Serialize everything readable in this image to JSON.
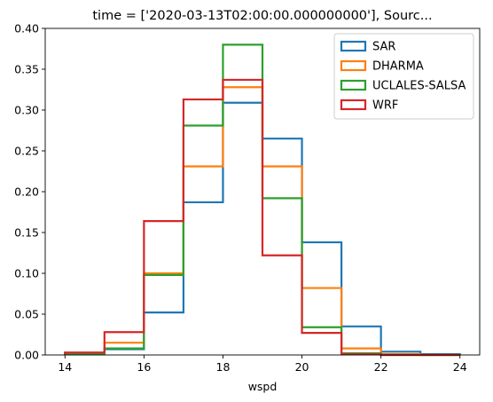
{
  "chart_data": {
    "type": "step-histogram",
    "title": "time = ['2020-03-13T02:00:00.000000000'], Sourc...",
    "xlabel": "wspd",
    "ylabel": "",
    "xlim": [
      13.5,
      24.5
    ],
    "ylim": [
      0,
      0.4
    ],
    "xticks": [
      14,
      16,
      18,
      20,
      22,
      24
    ],
    "yticks": [
      0.0,
      0.05,
      0.1,
      0.15,
      0.2,
      0.25,
      0.3,
      0.35,
      0.4
    ],
    "bin_edges": [
      14,
      15,
      16,
      17,
      18,
      19,
      20,
      21,
      22,
      23,
      24
    ],
    "legend_position": "upper-right",
    "grid": false,
    "series": [
      {
        "name": "SAR",
        "color": "#1f77b4",
        "values": [
          0.002,
          0.007,
          0.052,
          0.187,
          0.309,
          0.265,
          0.138,
          0.035,
          0.004,
          0.001
        ]
      },
      {
        "name": "DHARMA",
        "color": "#ff7f0e",
        "values": [
          0.001,
          0.015,
          0.1,
          0.231,
          0.328,
          0.231,
          0.082,
          0.008,
          0.001,
          0.0
        ]
      },
      {
        "name": "UCLALES-SALSA",
        "color": "#2ca02c",
        "values": [
          0.001,
          0.008,
          0.098,
          0.281,
          0.38,
          0.192,
          0.034,
          0.002,
          0.0,
          0.0
        ]
      },
      {
        "name": "WRF",
        "color": "#d62728",
        "values": [
          0.003,
          0.028,
          0.164,
          0.313,
          0.337,
          0.122,
          0.027,
          0.001,
          0.0,
          0.0
        ]
      }
    ]
  }
}
